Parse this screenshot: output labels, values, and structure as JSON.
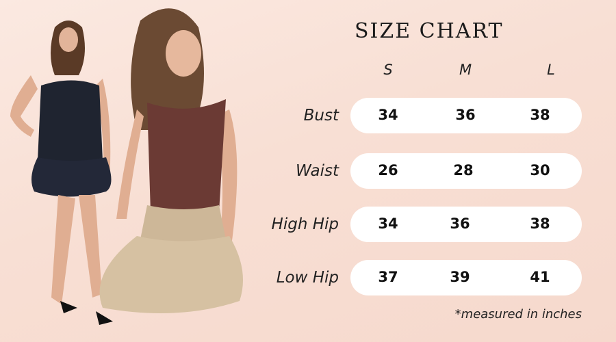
{
  "title": "SIZE CHART",
  "columns": [
    "S",
    "M",
    "L"
  ],
  "rows": [
    {
      "label": "Bust",
      "values": [
        "34",
        "36",
        "38"
      ]
    },
    {
      "label": "Waist",
      "values": [
        "26",
        "28",
        "30"
      ]
    },
    {
      "label": "High Hip",
      "values": [
        "34",
        "36",
        "38"
      ]
    },
    {
      "label": "Low Hip",
      "values": [
        "37",
        "39",
        "41"
      ]
    }
  ],
  "footnote": "*measured in inches",
  "colors": {
    "background": "#f8dfd4",
    "pill": "#ffffff",
    "text": "#111111"
  }
}
